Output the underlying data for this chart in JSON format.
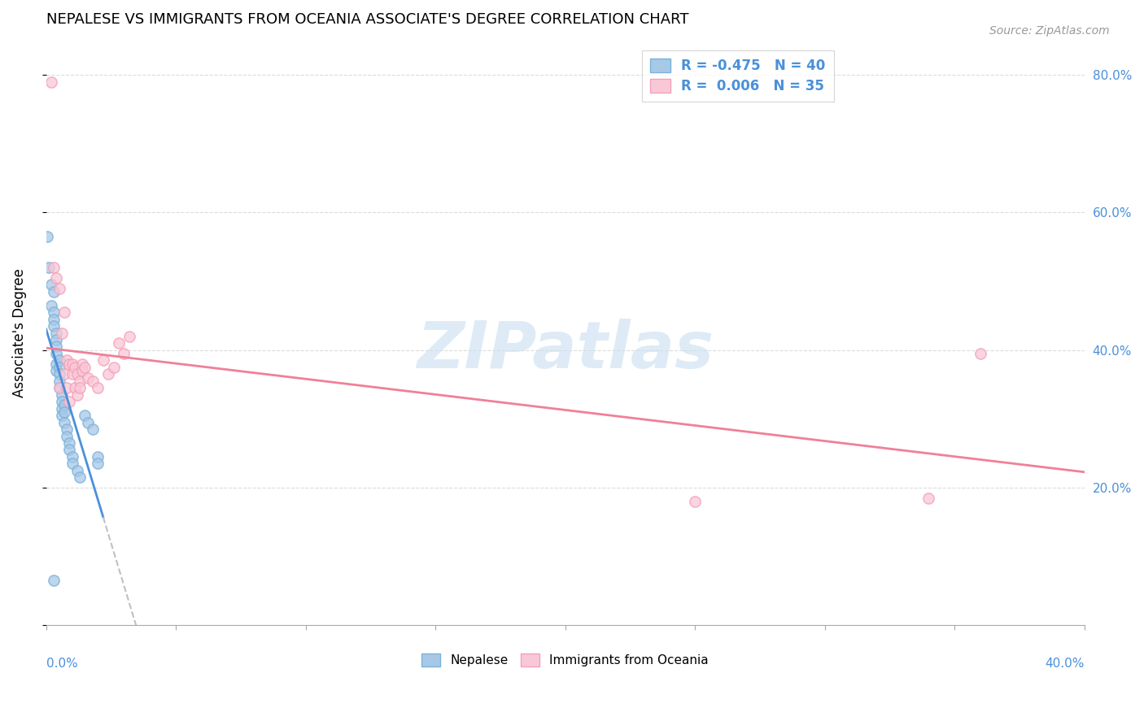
{
  "title": "NEPALESE VS IMMIGRANTS FROM OCEANIA ASSOCIATE'S DEGREE CORRELATION CHART",
  "source": "Source: ZipAtlas.com",
  "ylabel": "Associate's Degree",
  "y_ticks": [
    0.0,
    0.2,
    0.4,
    0.6,
    0.8
  ],
  "y_tick_labels": [
    "",
    "20.0%",
    "40.0%",
    "60.0%",
    "80.0%"
  ],
  "x_lim": [
    0.0,
    0.4
  ],
  "y_lim": [
    0.0,
    0.85
  ],
  "nepalese_x": [
    0.0005,
    0.001,
    0.002,
    0.002,
    0.003,
    0.003,
    0.003,
    0.003,
    0.004,
    0.004,
    0.004,
    0.004,
    0.004,
    0.004,
    0.005,
    0.005,
    0.005,
    0.005,
    0.005,
    0.006,
    0.006,
    0.006,
    0.006,
    0.007,
    0.007,
    0.007,
    0.008,
    0.008,
    0.009,
    0.009,
    0.01,
    0.01,
    0.012,
    0.013,
    0.015,
    0.016,
    0.018,
    0.02,
    0.02,
    0.003
  ],
  "nepalese_y": [
    0.565,
    0.52,
    0.495,
    0.465,
    0.485,
    0.455,
    0.445,
    0.435,
    0.425,
    0.415,
    0.405,
    0.395,
    0.38,
    0.37,
    0.385,
    0.375,
    0.365,
    0.355,
    0.345,
    0.335,
    0.325,
    0.315,
    0.305,
    0.32,
    0.31,
    0.295,
    0.285,
    0.275,
    0.265,
    0.255,
    0.245,
    0.235,
    0.225,
    0.215,
    0.305,
    0.295,
    0.285,
    0.245,
    0.235,
    0.065
  ],
  "oceania_x": [
    0.002,
    0.003,
    0.004,
    0.005,
    0.005,
    0.006,
    0.007,
    0.007,
    0.008,
    0.008,
    0.009,
    0.009,
    0.01,
    0.01,
    0.011,
    0.011,
    0.012,
    0.012,
    0.013,
    0.013,
    0.014,
    0.014,
    0.015,
    0.016,
    0.018,
    0.02,
    0.022,
    0.024,
    0.026,
    0.028,
    0.03,
    0.032,
    0.36,
    0.34,
    0.25
  ],
  "oceania_y": [
    0.79,
    0.52,
    0.505,
    0.49,
    0.345,
    0.425,
    0.455,
    0.365,
    0.385,
    0.345,
    0.38,
    0.325,
    0.38,
    0.365,
    0.375,
    0.345,
    0.365,
    0.335,
    0.355,
    0.345,
    0.38,
    0.37,
    0.375,
    0.36,
    0.355,
    0.345,
    0.385,
    0.365,
    0.375,
    0.41,
    0.395,
    0.42,
    0.395,
    0.185,
    0.18
  ],
  "nepalese_face_color": "#a8c8e8",
  "nepalese_edge_color": "#7ab3d9",
  "oceania_face_color": "#f9c8d8",
  "oceania_edge_color": "#f4a0b8",
  "nepalese_line_color": "#4a90d9",
  "oceania_line_color": "#f08098",
  "dash_color": "#c0c0c0",
  "watermark": "ZIPatlas",
  "watermark_color": "#c8dff0",
  "tick_label_color": "#4a90d9",
  "legend_r1": "R = -0.475   N = 40",
  "legend_r2": "R =  0.006   N = 35",
  "bottom_legend_nepalese": "Nepalese",
  "bottom_legend_oceania": "Immigrants from Oceania"
}
